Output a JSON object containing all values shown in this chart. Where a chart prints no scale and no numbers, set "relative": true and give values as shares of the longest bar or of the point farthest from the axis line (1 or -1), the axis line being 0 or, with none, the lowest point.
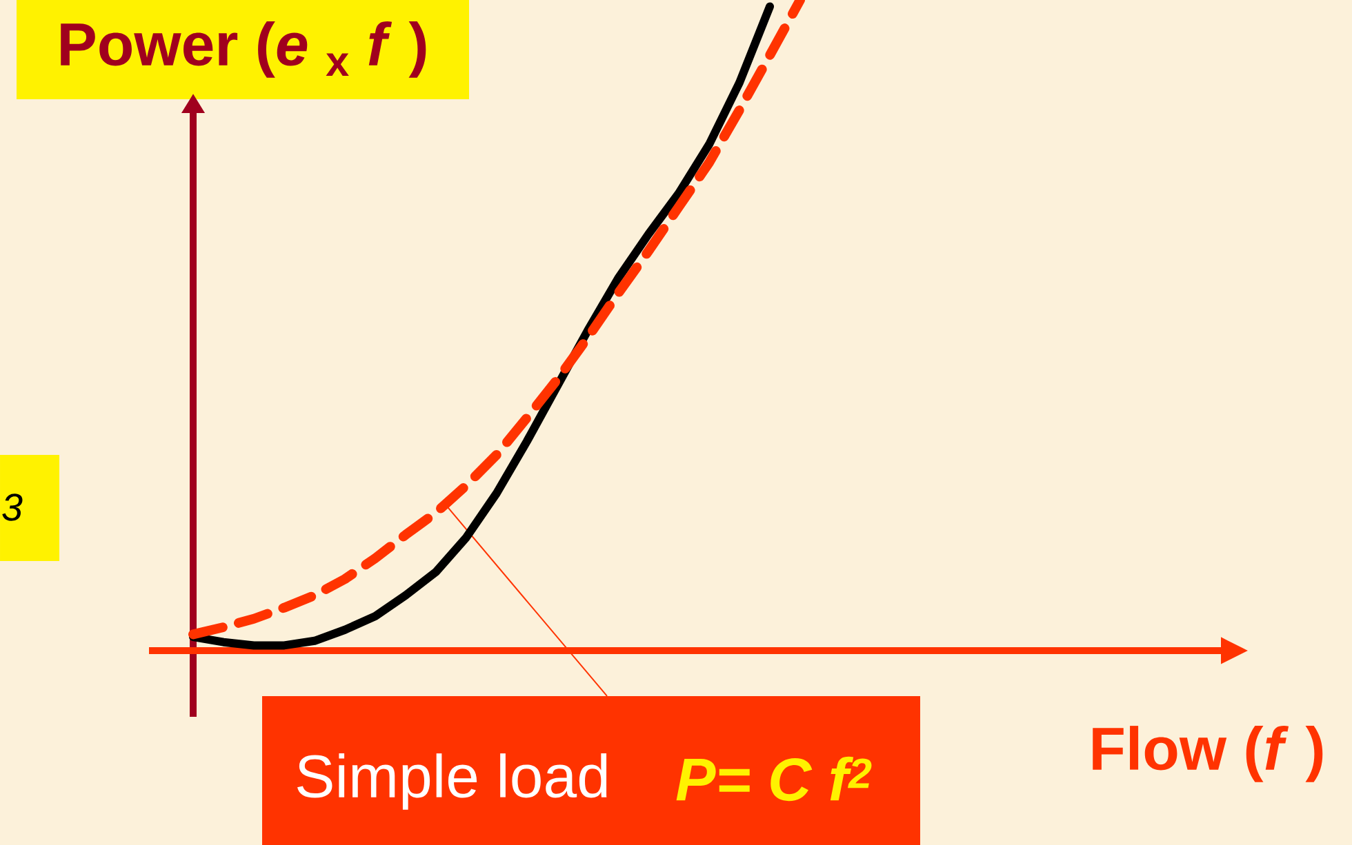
{
  "chart_data": {
    "type": "line",
    "relative": true,
    "xlabel": "Flow (*f* )",
    "ylabel": "Power (*e* $_{x}$ *f* )",
    "annotations": [
      "3",
      "Simple load",
      "P= C f$^{2}$"
    ],
    "categories": [
      null,
      null,
      null,
      null,
      null,
      null,
      null,
      null,
      null,
      null,
      null,
      null,
      null,
      null,
      null,
      null,
      null,
      null,
      null,
      null,
      null
    ],
    "series": [
      {
        "color": "#000000",
        "line_style": "solid",
        "values": [
          0.021,
          0.013,
          0.008,
          0.008,
          0.015,
          0.032,
          0.053,
          0.085,
          0.121,
          0.174,
          0.242,
          0.322,
          0.407,
          0.492,
          0.572,
          0.64,
          0.703,
          0.778,
          0.873,
          0.99,
          null
        ]
      },
      {
        "color": "#ff3300",
        "line_style": "dashed",
        "values": [
          0.025,
          0.036,
          0.049,
          0.066,
          0.085,
          0.11,
          0.142,
          0.178,
          0.212,
          0.254,
          0.301,
          0.358,
          0.417,
          0.481,
          0.549,
          0.614,
          0.682,
          0.75,
          0.831,
          0.915,
          1
        ]
      }
    ]
  }
}
